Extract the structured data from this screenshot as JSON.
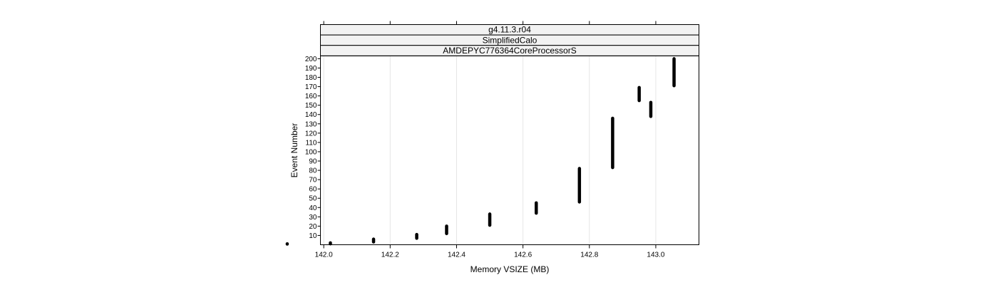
{
  "chart_data": {
    "type": "scatter",
    "strips": [
      "g4.11.3.r04",
      "SimplifiedCalo",
      "AMDEPYC776364CoreProcessorS"
    ],
    "xlabel": "Memory VSIZE (MB)",
    "ylabel": "Event Number",
    "xlim": [
      141.99,
      143.13
    ],
    "ylim": [
      0,
      203
    ],
    "x_ticks": [
      142.0,
      142.2,
      142.4,
      142.6,
      142.8,
      143.0
    ],
    "x_tick_labels": [
      "142.0",
      "142.2",
      "142.4",
      "142.6",
      "142.8",
      "143.0"
    ],
    "y_ticks": [
      10,
      20,
      30,
      40,
      50,
      60,
      70,
      80,
      90,
      100,
      110,
      120,
      130,
      140,
      150,
      160,
      170,
      180,
      190,
      200
    ],
    "y_tick_labels": [
      "10",
      "20",
      "30",
      "40",
      "50",
      "60",
      "70",
      "80",
      "90",
      "100",
      "110",
      "120",
      "130",
      "140",
      "150",
      "160",
      "170",
      "180",
      "190",
      "200"
    ],
    "grid": "vertical",
    "mark_color": "#000000",
    "series": [
      {
        "values": [
          {
            "x": 141.89,
            "y_min": 0,
            "y_max": 1
          },
          {
            "x": 142.02,
            "y_min": 1,
            "y_max": 2
          },
          {
            "x": 142.15,
            "y_min": 3,
            "y_max": 6
          },
          {
            "x": 142.28,
            "y_min": 7,
            "y_max": 11
          },
          {
            "x": 142.37,
            "y_min": 12,
            "y_max": 20
          },
          {
            "x": 142.5,
            "y_min": 21,
            "y_max": 33
          },
          {
            "x": 142.64,
            "y_min": 34,
            "y_max": 45
          },
          {
            "x": 142.77,
            "y_min": 46,
            "y_max": 82
          },
          {
            "x": 142.87,
            "y_min": 83,
            "y_max": 136
          },
          {
            "x": 142.95,
            "y_min": 155,
            "y_max": 169
          },
          {
            "x": 142.985,
            "y_min": 138,
            "y_max": 153
          },
          {
            "x": 143.055,
            "y_min": 171,
            "y_max": 200
          }
        ]
      }
    ]
  }
}
